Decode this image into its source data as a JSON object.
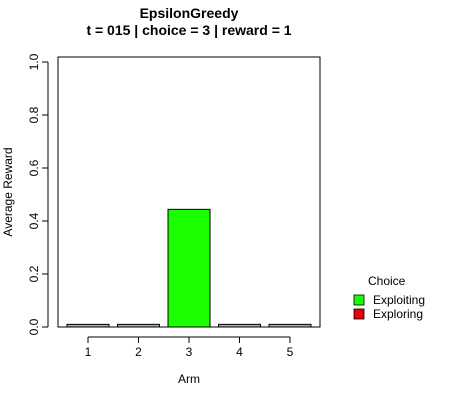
{
  "chart_data": {
    "type": "bar",
    "title": "EpsilonGreedy",
    "subtitle": "t = 015 | choice = 3 | reward = 1",
    "xlabel": "Arm",
    "ylabel": "Average Reward",
    "categories": [
      "1",
      "2",
      "3",
      "4",
      "5"
    ],
    "values": [
      0.01,
      0.01,
      0.444,
      0.01,
      0.01
    ],
    "bar_status": [
      "none",
      "none",
      "Exploiting",
      "none",
      "none"
    ],
    "ylim": [
      0,
      1
    ],
    "yticks": [
      0.0,
      0.2,
      0.4,
      0.6,
      0.8,
      1.0
    ],
    "ytick_labels": [
      "0.0",
      "0.2",
      "0.4",
      "0.6",
      "0.8",
      "1.0"
    ],
    "grid": false,
    "legend": {
      "title": "Choice",
      "placement": "right",
      "entries": [
        {
          "label": "Exploiting",
          "color": "#1aff00"
        },
        {
          "label": "Exploring",
          "color": "#e8000b"
        }
      ]
    },
    "colors": {
      "Exploiting": "#1aff00",
      "Exploring": "#e8000b",
      "none": "#aaaaaa"
    }
  }
}
